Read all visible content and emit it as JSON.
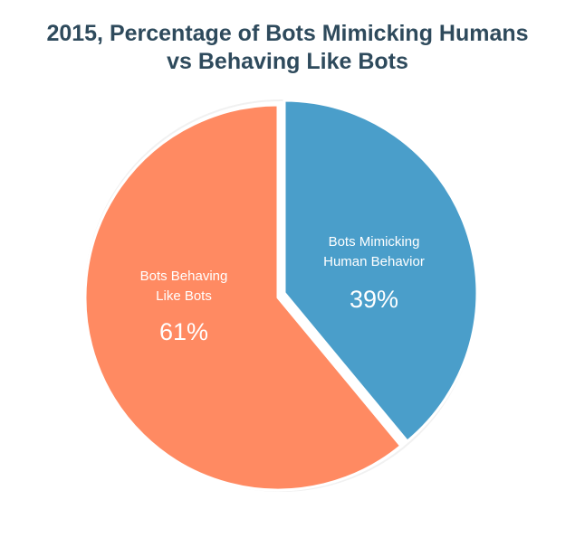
{
  "chart_data": {
    "type": "pie",
    "title_lines": [
      "2015, Percentage of Bots Mimicking Humans",
      "vs Behaving Like Bots"
    ],
    "slices": [
      {
        "name_lines": [
          "Bots Mimicking",
          "Human Behavior"
        ],
        "value": 39,
        "value_label": "39%",
        "color": "#4a9eca"
      },
      {
        "name_lines": [
          "Bots Behaving",
          "Like Bots"
        ],
        "value": 61,
        "value_label": "61%",
        "color": "#ff8a62"
      }
    ],
    "start_angle_deg": 0,
    "direction": "clockwise",
    "legend": "none"
  }
}
